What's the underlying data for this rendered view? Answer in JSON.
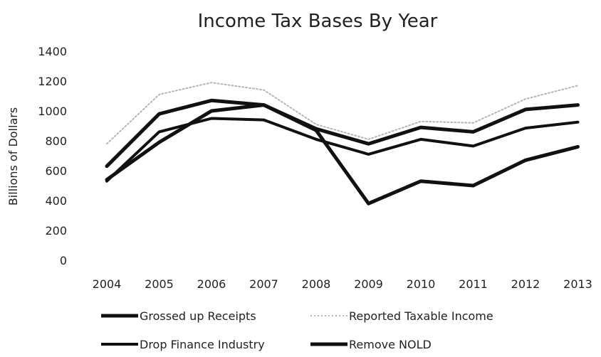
{
  "chart_data": {
    "type": "line",
    "title": "Income Tax Bases By Year",
    "xlabel": "",
    "ylabel": "Billions of Dollars",
    "categories": [
      "2004",
      "2005",
      "2006",
      "2007",
      "2008",
      "2009",
      "2010",
      "2011",
      "2012",
      "2013"
    ],
    "yticks": [
      "0",
      "200",
      "400",
      "600",
      "800",
      "1000",
      "1200",
      "1400"
    ],
    "ylim": [
      0,
      1400
    ],
    "grid": false,
    "legend_position": "bottom",
    "series": [
      {
        "name": "Grossed up Receipts",
        "style": "solid-thick",
        "color": "#111111",
        "values": [
          540,
          790,
          1000,
          1040,
          870,
          380,
          530,
          500,
          670,
          760
        ]
      },
      {
        "name": "Reported Taxable Income",
        "style": "dotted-light",
        "color": "#b5b5b5",
        "values": [
          780,
          1110,
          1190,
          1140,
          910,
          810,
          930,
          920,
          1080,
          1170
        ]
      },
      {
        "name": "Drop Finance Industry",
        "style": "solid-medium",
        "color": "#111111",
        "values": [
          530,
          860,
          950,
          940,
          810,
          710,
          810,
          765,
          885,
          925
        ]
      },
      {
        "name": "Remove NOLD",
        "style": "solid-thick",
        "color": "#111111",
        "values": [
          630,
          980,
          1070,
          1040,
          880,
          780,
          890,
          860,
          1010,
          1040
        ]
      }
    ]
  }
}
